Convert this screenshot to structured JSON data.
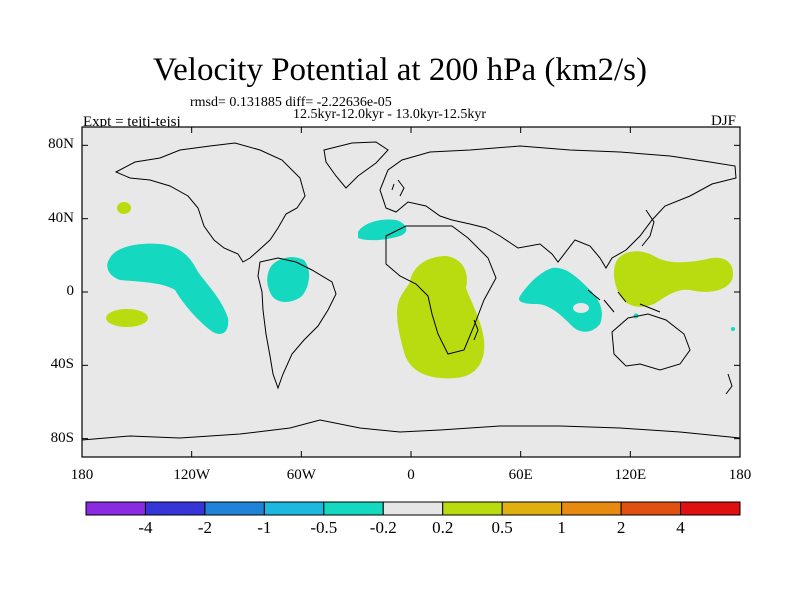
{
  "title": "Velocity Potential at 200 hPa (km2/s)",
  "stats_text": "rmsd= 0.131885 diff= -2.22636e-05",
  "periods_text": "12.5kyr-12.0kyr - 13.0kyr-12.5kyr",
  "experiment_text": "Expt = tejtj-tejsj",
  "season": "DJF",
  "map": {
    "lon_range": [
      -180,
      180
    ],
    "lat_range": [
      -90,
      90
    ],
    "background_color": "#e8e8e8",
    "lat_ticks": [
      {
        "lat": 80,
        "label": "80N"
      },
      {
        "lat": 40,
        "label": "40N"
      },
      {
        "lat": 0,
        "label": "0"
      },
      {
        "lat": -40,
        "label": "40S"
      },
      {
        "lat": -80,
        "label": "80S"
      }
    ],
    "lon_ticks": [
      {
        "lon": -180,
        "label": "180"
      },
      {
        "lon": -120,
        "label": "120W"
      },
      {
        "lon": -60,
        "label": "60W"
      },
      {
        "lon": 0,
        "label": "0"
      },
      {
        "lon": 60,
        "label": "60E"
      },
      {
        "lon": 120,
        "label": "120E"
      },
      {
        "lon": 180,
        "label": "180"
      }
    ]
  },
  "colorbar": {
    "colors": [
      "#8a2be2",
      "#3636d8",
      "#1f84d8",
      "#1cb8e0",
      "#14d8c0",
      "#e6e6e6",
      "#b8dc10",
      "#e0b010",
      "#e88a10",
      "#e05010",
      "#e01010"
    ],
    "labels": [
      "-4",
      "-2",
      "-1",
      "-0.5",
      "-0.2",
      "0.2",
      "0.5",
      "1",
      "2",
      "4"
    ]
  }
}
